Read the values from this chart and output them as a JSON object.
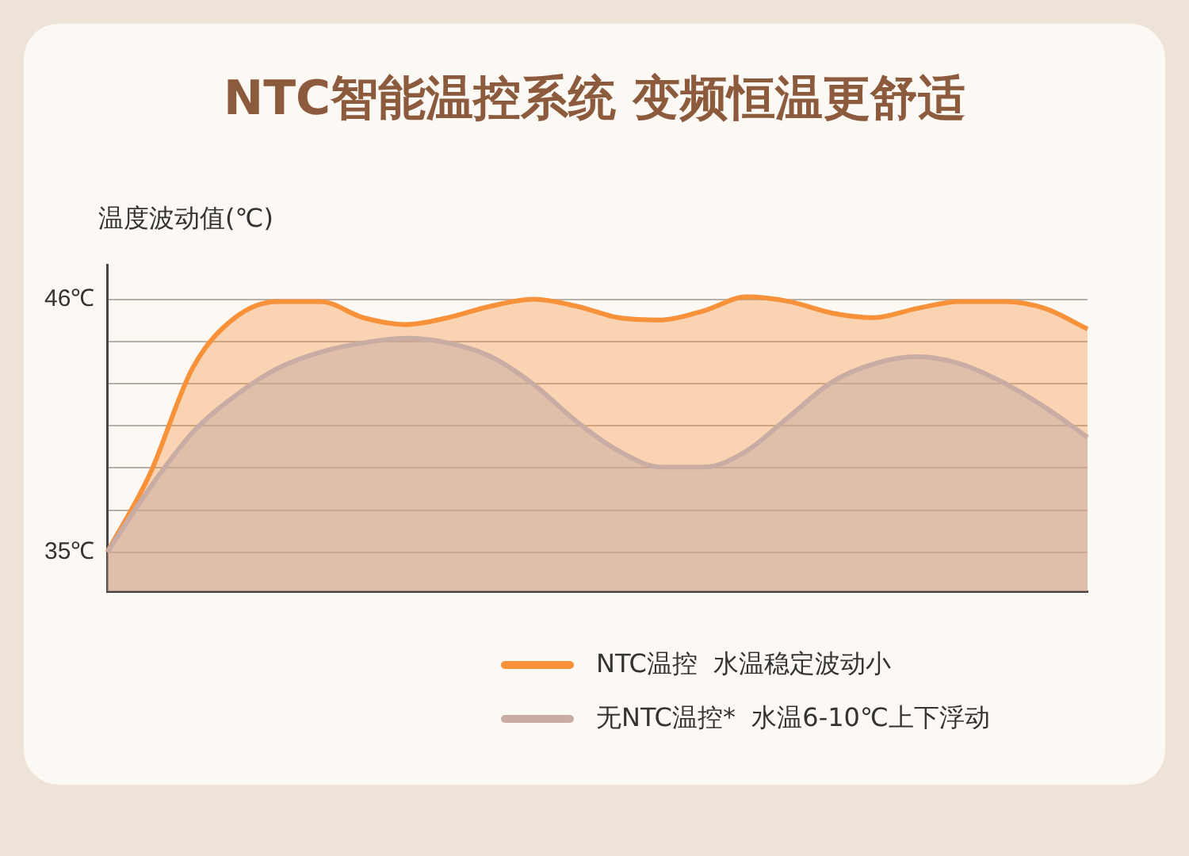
{
  "chart_data": {
    "type": "area",
    "title": "NTC智能温控系统 变频恒温更舒适",
    "ylabel": "温度波动值(℃)",
    "categories": [
      null,
      null,
      null,
      null,
      null,
      null,
      null,
      null,
      null,
      null,
      null,
      null,
      null,
      null,
      null,
      null,
      null,
      null,
      null,
      null,
      null,
      null,
      null,
      null
    ],
    "series": [
      {
        "name": "NTC温控  水温稳定波动小",
        "color": "#f7913a",
        "values": [
          35,
          38.4,
          43.0,
          45.2,
          45.9,
          45.9,
          45.2,
          44.9,
          45.2,
          45.7,
          46.0,
          45.7,
          45.2,
          45.1,
          45.5,
          46.1,
          45.9,
          45.4,
          45.2,
          45.6,
          45.9,
          45.9,
          45.6,
          44.7
        ]
      },
      {
        "name": "无NTC温控*  水温6-10℃上下浮动",
        "color": "#c9aca4",
        "values": [
          35,
          37.8,
          40.2,
          41.8,
          43.0,
          43.7,
          44.1,
          44.3,
          44.1,
          43.5,
          42.3,
          40.7,
          39.4,
          38.7,
          38.7,
          39.4,
          40.9,
          42.4,
          43.2,
          43.5,
          43.2,
          42.4,
          41.3,
          40.0
        ]
      }
    ],
    "ylim": [
      33.3,
      47.5
    ],
    "yticks": [
      {
        "value": 35,
        "label": "35℃"
      },
      {
        "value": 36.83,
        "label": null
      },
      {
        "value": 38.67,
        "label": null
      },
      {
        "value": 40.5,
        "label": null
      },
      {
        "value": 42.33,
        "label": null
      },
      {
        "value": 44.17,
        "label": null
      },
      {
        "value": 46,
        "label": "46℃"
      }
    ],
    "grid": "y",
    "tick_labels": "y",
    "legend": "bottom right",
    "marker": "none",
    "line_style": "solid"
  }
}
